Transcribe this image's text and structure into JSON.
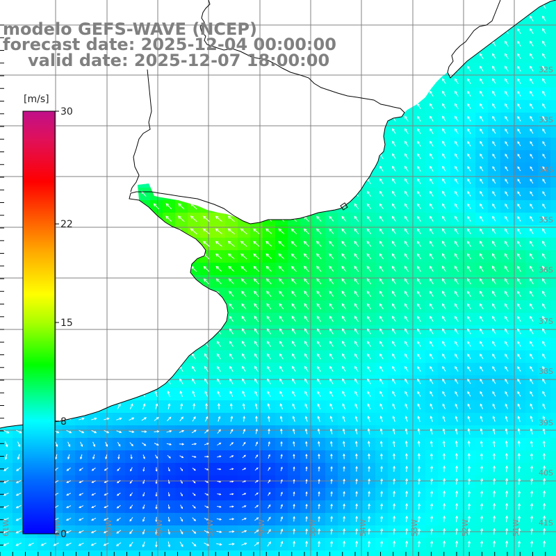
{
  "title": {
    "model": "modelo GEFS-WAVE (NCEP)",
    "forecast": "forecast date: 2025-12-04 00:00:00",
    "valid": "valid date: 2025-12-07 18:00:00"
  },
  "colorbar": {
    "unit": "[m/s]",
    "ticks": [
      {
        "value": 30,
        "label": "30"
      },
      {
        "value": 22,
        "label": "22"
      },
      {
        "value": 15,
        "label": "15"
      },
      {
        "value": 8,
        "label": "8"
      },
      {
        "value": 0,
        "label": "0"
      }
    ],
    "range": [
      0,
      30
    ],
    "stops": [
      {
        "value": 0,
        "color": "#0000ff"
      },
      {
        "value": 4,
        "color": "#0070ff"
      },
      {
        "value": 8,
        "color": "#00ffff"
      },
      {
        "value": 12,
        "color": "#00ff00"
      },
      {
        "value": 15,
        "color": "#aaff00"
      },
      {
        "value": 17,
        "color": "#ffff00"
      },
      {
        "value": 20,
        "color": "#ffaa00"
      },
      {
        "value": 22,
        "color": "#ff6600"
      },
      {
        "value": 25,
        "color": "#ff0000"
      },
      {
        "value": 28,
        "color": "#e0105a"
      },
      {
        "value": 30,
        "color": "#c0108a"
      }
    ]
  },
  "map": {
    "lat_labels": [
      "32S",
      "33S",
      "34S",
      "35S",
      "36S",
      "37S",
      "38S",
      "39S",
      "40S",
      "41S"
    ],
    "lon_labels": [
      "61W",
      "60W",
      "59W",
      "58W",
      "57W",
      "56W",
      "55W",
      "54W",
      "53W",
      "52W",
      "51W"
    ],
    "land_color": "#ffffff",
    "grid_color": "#808080",
    "coast_color": "#000000",
    "arrow_color": "#ffffff"
  }
}
